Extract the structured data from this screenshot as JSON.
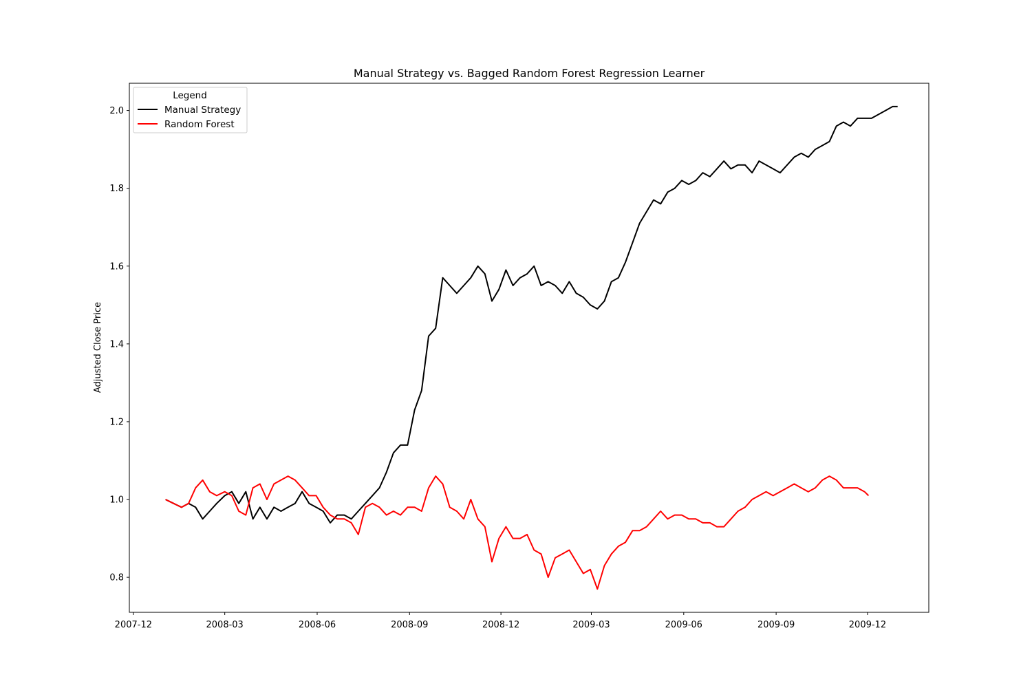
{
  "chart_data": {
    "type": "line",
    "title": "Manual Strategy vs. Bagged Random Forest Regression Learner",
    "xlabel": "",
    "ylabel": "Adjusted Close Price",
    "x_ticks": [
      "2007-12",
      "2008-03",
      "2008-06",
      "2008-09",
      "2008-12",
      "2009-03",
      "2009-06",
      "2009-09",
      "2009-12"
    ],
    "y_ticks": [
      "0.8",
      "1.0",
      "1.2",
      "1.4",
      "1.6",
      "1.8",
      "2.0"
    ],
    "xlim": [
      "2007-11-27",
      "2010-01-31"
    ],
    "ylim": [
      0.71,
      2.07
    ],
    "legend": {
      "title": "Legend",
      "position": "top-left"
    },
    "grid": false,
    "series": [
      {
        "name": "Manual Strategy",
        "color": "#000000",
        "points": [
          [
            "2008-01-02",
            1.0
          ],
          [
            "2008-01-10",
            0.99
          ],
          [
            "2008-01-18",
            0.98
          ],
          [
            "2008-01-25",
            0.99
          ],
          [
            "2008-02-01",
            0.98
          ],
          [
            "2008-02-08",
            0.95
          ],
          [
            "2008-02-15",
            0.97
          ],
          [
            "2008-02-22",
            0.99
          ],
          [
            "2008-03-01",
            1.01
          ],
          [
            "2008-03-08",
            1.02
          ],
          [
            "2008-03-15",
            0.99
          ],
          [
            "2008-03-22",
            1.02
          ],
          [
            "2008-03-29",
            0.95
          ],
          [
            "2008-04-05",
            0.98
          ],
          [
            "2008-04-12",
            0.95
          ],
          [
            "2008-04-19",
            0.98
          ],
          [
            "2008-04-26",
            0.97
          ],
          [
            "2008-05-03",
            0.98
          ],
          [
            "2008-05-10",
            0.99
          ],
          [
            "2008-05-17",
            1.02
          ],
          [
            "2008-05-24",
            0.99
          ],
          [
            "2008-05-31",
            0.98
          ],
          [
            "2008-06-07",
            0.97
          ],
          [
            "2008-06-14",
            0.94
          ],
          [
            "2008-06-21",
            0.96
          ],
          [
            "2008-06-28",
            0.96
          ],
          [
            "2008-07-05",
            0.95
          ],
          [
            "2008-07-12",
            0.97
          ],
          [
            "2008-07-19",
            0.99
          ],
          [
            "2008-07-26",
            1.01
          ],
          [
            "2008-08-02",
            1.03
          ],
          [
            "2008-08-09",
            1.07
          ],
          [
            "2008-08-16",
            1.12
          ],
          [
            "2008-08-23",
            1.14
          ],
          [
            "2008-08-30",
            1.14
          ],
          [
            "2008-09-06",
            1.23
          ],
          [
            "2008-09-13",
            1.28
          ],
          [
            "2008-09-20",
            1.42
          ],
          [
            "2008-09-27",
            1.44
          ],
          [
            "2008-10-04",
            1.57
          ],
          [
            "2008-10-11",
            1.55
          ],
          [
            "2008-10-18",
            1.53
          ],
          [
            "2008-10-25",
            1.55
          ],
          [
            "2008-11-01",
            1.57
          ],
          [
            "2008-11-08",
            1.6
          ],
          [
            "2008-11-15",
            1.58
          ],
          [
            "2008-11-22",
            1.51
          ],
          [
            "2008-11-29",
            1.54
          ],
          [
            "2008-12-06",
            1.59
          ],
          [
            "2008-12-13",
            1.55
          ],
          [
            "2008-12-20",
            1.57
          ],
          [
            "2008-12-27",
            1.58
          ],
          [
            "2009-01-03",
            1.6
          ],
          [
            "2009-01-10",
            1.55
          ],
          [
            "2009-01-17",
            1.56
          ],
          [
            "2009-01-24",
            1.55
          ],
          [
            "2009-01-31",
            1.53
          ],
          [
            "2009-02-07",
            1.56
          ],
          [
            "2009-02-14",
            1.53
          ],
          [
            "2009-02-21",
            1.52
          ],
          [
            "2009-02-28",
            1.5
          ],
          [
            "2009-03-07",
            1.49
          ],
          [
            "2009-03-14",
            1.51
          ],
          [
            "2009-03-21",
            1.56
          ],
          [
            "2009-03-28",
            1.57
          ],
          [
            "2009-04-04",
            1.61
          ],
          [
            "2009-04-11",
            1.66
          ],
          [
            "2009-04-18",
            1.71
          ],
          [
            "2009-04-25",
            1.74
          ],
          [
            "2009-05-02",
            1.77
          ],
          [
            "2009-05-09",
            1.76
          ],
          [
            "2009-05-16",
            1.79
          ],
          [
            "2009-05-23",
            1.8
          ],
          [
            "2009-05-30",
            1.82
          ],
          [
            "2009-06-06",
            1.81
          ],
          [
            "2009-06-13",
            1.82
          ],
          [
            "2009-06-20",
            1.84
          ],
          [
            "2009-06-27",
            1.83
          ],
          [
            "2009-07-04",
            1.85
          ],
          [
            "2009-07-11",
            1.87
          ],
          [
            "2009-07-18",
            1.85
          ],
          [
            "2009-07-25",
            1.86
          ],
          [
            "2009-08-01",
            1.86
          ],
          [
            "2009-08-08",
            1.84
          ],
          [
            "2009-08-15",
            1.87
          ],
          [
            "2009-08-22",
            1.86
          ],
          [
            "2009-08-29",
            1.85
          ],
          [
            "2009-09-05",
            1.84
          ],
          [
            "2009-09-12",
            1.86
          ],
          [
            "2009-09-19",
            1.88
          ],
          [
            "2009-09-26",
            1.89
          ],
          [
            "2009-10-03",
            1.88
          ],
          [
            "2009-10-10",
            1.9
          ],
          [
            "2009-10-17",
            1.91
          ],
          [
            "2009-10-24",
            1.92
          ],
          [
            "2009-10-31",
            1.96
          ],
          [
            "2009-11-07",
            1.97
          ],
          [
            "2009-11-14",
            1.96
          ],
          [
            "2009-11-21",
            1.98
          ],
          [
            "2009-11-28",
            1.98
          ],
          [
            "2009-12-05",
            1.98
          ],
          [
            "2009-12-12",
            1.99
          ],
          [
            "2009-12-19",
            2.0
          ],
          [
            "2009-12-26",
            2.01
          ],
          [
            "2009-12-31",
            2.01
          ]
        ]
      },
      {
        "name": "Random Forest",
        "color": "#ff0000",
        "points": [
          [
            "2008-01-02",
            1.0
          ],
          [
            "2008-01-10",
            0.99
          ],
          [
            "2008-01-18",
            0.98
          ],
          [
            "2008-01-25",
            0.99
          ],
          [
            "2008-02-01",
            1.03
          ],
          [
            "2008-02-08",
            1.05
          ],
          [
            "2008-02-15",
            1.02
          ],
          [
            "2008-02-22",
            1.01
          ],
          [
            "2008-03-01",
            1.02
          ],
          [
            "2008-03-08",
            1.01
          ],
          [
            "2008-03-15",
            0.97
          ],
          [
            "2008-03-22",
            0.96
          ],
          [
            "2008-03-29",
            1.03
          ],
          [
            "2008-04-05",
            1.04
          ],
          [
            "2008-04-12",
            1.0
          ],
          [
            "2008-04-19",
            1.04
          ],
          [
            "2008-04-26",
            1.05
          ],
          [
            "2008-05-03",
            1.06
          ],
          [
            "2008-05-10",
            1.05
          ],
          [
            "2008-05-17",
            1.03
          ],
          [
            "2008-05-24",
            1.01
          ],
          [
            "2008-05-31",
            1.01
          ],
          [
            "2008-06-07",
            0.98
          ],
          [
            "2008-06-14",
            0.96
          ],
          [
            "2008-06-21",
            0.95
          ],
          [
            "2008-06-28",
            0.95
          ],
          [
            "2008-07-05",
            0.94
          ],
          [
            "2008-07-12",
            0.91
          ],
          [
            "2008-07-19",
            0.98
          ],
          [
            "2008-07-26",
            0.99
          ],
          [
            "2008-08-02",
            0.98
          ],
          [
            "2008-08-09",
            0.96
          ],
          [
            "2008-08-16",
            0.97
          ],
          [
            "2008-08-23",
            0.96
          ],
          [
            "2008-08-30",
            0.98
          ],
          [
            "2008-09-06",
            0.98
          ],
          [
            "2008-09-13",
            0.97
          ],
          [
            "2008-09-20",
            1.03
          ],
          [
            "2008-09-27",
            1.06
          ],
          [
            "2008-10-04",
            1.04
          ],
          [
            "2008-10-11",
            0.98
          ],
          [
            "2008-10-18",
            0.97
          ],
          [
            "2008-10-25",
            0.95
          ],
          [
            "2008-11-01",
            1.0
          ],
          [
            "2008-11-08",
            0.95
          ],
          [
            "2008-11-15",
            0.93
          ],
          [
            "2008-11-22",
            0.84
          ],
          [
            "2008-11-29",
            0.9
          ],
          [
            "2008-12-06",
            0.93
          ],
          [
            "2008-12-13",
            0.9
          ],
          [
            "2008-12-20",
            0.9
          ],
          [
            "2008-12-27",
            0.91
          ],
          [
            "2009-01-03",
            0.87
          ],
          [
            "2009-01-10",
            0.86
          ],
          [
            "2009-01-17",
            0.8
          ],
          [
            "2009-01-24",
            0.85
          ],
          [
            "2009-01-31",
            0.86
          ],
          [
            "2009-02-07",
            0.87
          ],
          [
            "2009-02-14",
            0.84
          ],
          [
            "2009-02-21",
            0.81
          ],
          [
            "2009-02-28",
            0.82
          ],
          [
            "2009-03-07",
            0.77
          ],
          [
            "2009-03-14",
            0.83
          ],
          [
            "2009-03-21",
            0.86
          ],
          [
            "2009-03-28",
            0.88
          ],
          [
            "2009-04-04",
            0.89
          ],
          [
            "2009-04-11",
            0.92
          ],
          [
            "2009-04-18",
            0.92
          ],
          [
            "2009-04-25",
            0.93
          ],
          [
            "2009-05-02",
            0.95
          ],
          [
            "2009-05-09",
            0.97
          ],
          [
            "2009-05-16",
            0.95
          ],
          [
            "2009-05-23",
            0.96
          ],
          [
            "2009-05-30",
            0.96
          ],
          [
            "2009-06-06",
            0.95
          ],
          [
            "2009-06-13",
            0.95
          ],
          [
            "2009-06-20",
            0.94
          ],
          [
            "2009-06-27",
            0.94
          ],
          [
            "2009-07-04",
            0.93
          ],
          [
            "2009-07-11",
            0.93
          ],
          [
            "2009-07-18",
            0.95
          ],
          [
            "2009-07-25",
            0.97
          ],
          [
            "2009-08-01",
            0.98
          ],
          [
            "2009-08-08",
            1.0
          ],
          [
            "2009-08-15",
            1.01
          ],
          [
            "2009-08-22",
            1.02
          ],
          [
            "2009-08-29",
            1.01
          ],
          [
            "2009-09-05",
            1.02
          ],
          [
            "2009-09-12",
            1.03
          ],
          [
            "2009-09-19",
            1.04
          ],
          [
            "2009-09-26",
            1.03
          ],
          [
            "2009-10-03",
            1.02
          ],
          [
            "2009-10-10",
            1.03
          ],
          [
            "2009-10-17",
            1.05
          ],
          [
            "2009-10-24",
            1.06
          ],
          [
            "2009-10-31",
            1.05
          ],
          [
            "2009-11-07",
            1.03
          ],
          [
            "2009-11-14",
            1.03
          ],
          [
            "2009-11-21",
            1.03
          ],
          [
            "2009-11-28",
            1.02
          ],
          [
            "2009-12-02",
            1.01
          ]
        ]
      }
    ]
  }
}
